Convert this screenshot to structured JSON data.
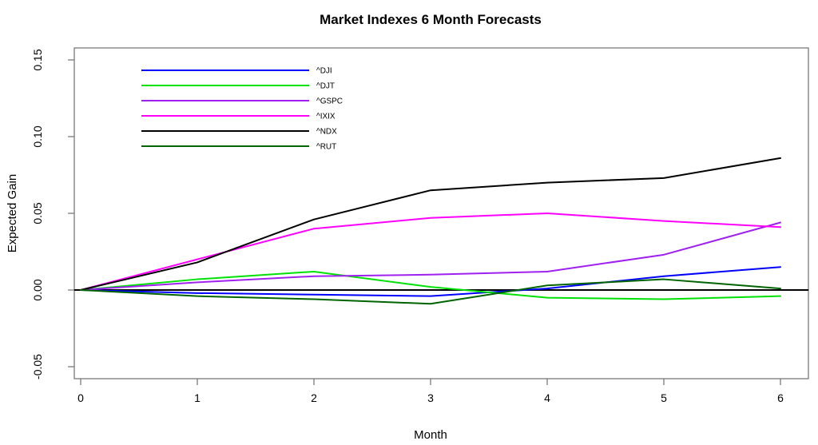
{
  "window": {
    "background": "#ffffff"
  },
  "chart_data": {
    "type": "line",
    "title": "Market Indexes 6 Month Forecasts",
    "xlabel": "Month",
    "ylabel": "Expected Gain",
    "x": [
      0,
      1,
      2,
      3,
      4,
      5,
      6
    ],
    "x_tick_labels": [
      "0",
      "1",
      "2",
      "3",
      "4",
      "5",
      "6"
    ],
    "y_tick_values": [
      -0.05,
      0.0,
      0.05,
      0.1,
      0.15
    ],
    "y_tick_labels": [
      "-0.05",
      "0.00",
      "0.05",
      "0.10",
      "0.15"
    ],
    "xlim": [
      -0.06,
      6.25
    ],
    "ylim": [
      -0.058,
      0.158
    ],
    "grid": false,
    "zero_reference_line": {
      "y": 0,
      "color": "#000000",
      "width": 2
    },
    "legend_position": "top-left-inside",
    "legend_entries": [
      "^DJI",
      "^DJT",
      "^GSPC",
      "^IXIX",
      "^NDX",
      "^RUT"
    ],
    "series": [
      {
        "name": "^DJI",
        "color": "#0000FF",
        "values": [
          0,
          -0.002,
          -0.003,
          -0.004,
          0.001,
          0.009,
          0.015
        ]
      },
      {
        "name": "^DJT",
        "color": "#00E205",
        "values": [
          0,
          0.007,
          0.012,
          0.002,
          -0.005,
          -0.006,
          -0.004
        ]
      },
      {
        "name": "^GSPC",
        "color": "#A020F0",
        "values": [
          0,
          0.005,
          0.009,
          0.01,
          0.012,
          0.023,
          0.044
        ]
      },
      {
        "name": "^IXIX",
        "color": "#FF00FF",
        "values": [
          0,
          0.02,
          0.04,
          0.047,
          0.05,
          0.045,
          0.041
        ]
      },
      {
        "name": "^NDX",
        "color": "#000000",
        "values": [
          0,
          0.018,
          0.046,
          0.065,
          0.07,
          0.073,
          0.086
        ]
      },
      {
        "name": "^RUT",
        "color": "#006400",
        "values": [
          0,
          -0.004,
          -0.006,
          -0.009,
          0.003,
          0.007,
          0.001
        ]
      }
    ],
    "axis_color": "#7a7a7a",
    "line_width": 2
  }
}
